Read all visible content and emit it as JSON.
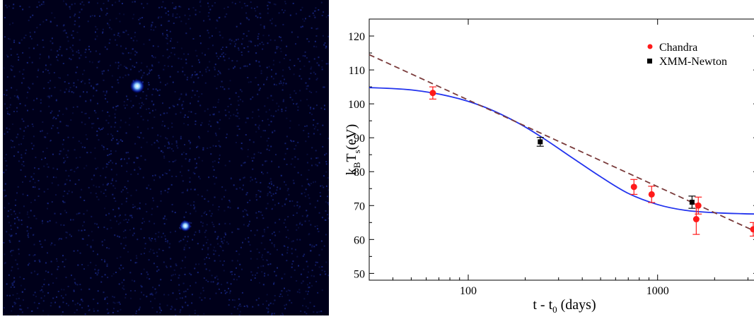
{
  "image_panel": {
    "background_color": "#00001a",
    "noise_color": "#1a2a8a",
    "sources": [
      {
        "name": "bright-source",
        "color": "#dff3ff"
      },
      {
        "name": "faint-source",
        "color": "#bfe6ff"
      }
    ]
  },
  "chart_data": {
    "type": "scatter",
    "title": "",
    "xlabel": "t - t",
    "xlabel_sub": "0",
    "xlabel_tail": " (days)",
    "ylabel_parts": [
      "k",
      "B",
      "T",
      "s",
      "(eV)"
    ],
    "xscale": "log",
    "xlim": [
      30,
      3400
    ],
    "ylim": [
      48,
      125
    ],
    "x_ticks": [
      100,
      1000
    ],
    "x_tick_labels": [
      "100",
      "1000"
    ],
    "y_ticks": [
      50,
      60,
      70,
      80,
      90,
      100,
      110,
      120
    ],
    "y_tick_labels": [
      "50",
      "60",
      "70",
      "80",
      "90",
      "100",
      "110",
      "120"
    ],
    "grid": false,
    "legend_position": "top-right",
    "series": [
      {
        "name": "Chandra",
        "color": "#ff1a1a",
        "marker": "circle",
        "points": [
          {
            "x": 65,
            "y": 103.2,
            "err": 1.8
          },
          {
            "x": 750,
            "y": 75.5,
            "err": 2.2
          },
          {
            "x": 930,
            "y": 73.3,
            "err": 2.4
          },
          {
            "x": 1600,
            "y": 66.0,
            "err": 4.5
          },
          {
            "x": 1640,
            "y": 70.0,
            "err": 2.5
          },
          {
            "x": 3200,
            "y": 63.0,
            "err": 2.0
          }
        ]
      },
      {
        "name": "XMM-Newton",
        "color": "#000000",
        "marker": "square",
        "points": [
          {
            "x": 240,
            "y": 88.8,
            "err": 1.3
          },
          {
            "x": 1520,
            "y": 71.0,
            "err": 1.8
          }
        ]
      }
    ],
    "fits": [
      {
        "style": "solid",
        "color": "#2233ee",
        "points": [
          [
            30,
            104.8
          ],
          [
            50,
            104.1
          ],
          [
            80,
            102.2
          ],
          [
            120,
            99.2
          ],
          [
            180,
            94.6
          ],
          [
            250,
            89.8
          ],
          [
            350,
            84.3
          ],
          [
            500,
            78.5
          ],
          [
            700,
            73.6
          ],
          [
            1000,
            70.3
          ],
          [
            1400,
            68.6
          ],
          [
            2000,
            67.9
          ],
          [
            2800,
            67.6
          ],
          [
            3400,
            67.5
          ]
        ]
      },
      {
        "style": "dashed",
        "color": "#7a3b3b",
        "points": [
          [
            30,
            114.5
          ],
          [
            3400,
            62.0
          ]
        ]
      }
    ]
  }
}
